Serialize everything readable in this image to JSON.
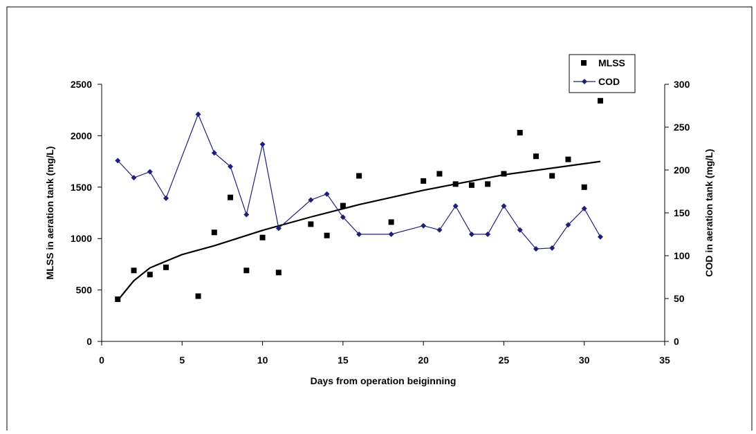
{
  "chart_data": {
    "type": "scatter",
    "title": "",
    "xlabel": "Days from operation beiginning",
    "ylabel": "MLSS  in aeration tank (mg/L)",
    "y2label": "COD in aeration tank (mg/L)",
    "xlim": [
      0,
      35
    ],
    "ylim": [
      0,
      2500
    ],
    "y2lim": [
      0,
      300
    ],
    "xticks": [
      0,
      5,
      10,
      15,
      20,
      25,
      30,
      35
    ],
    "yticks": [
      0,
      500,
      1000,
      1500,
      2000,
      2500
    ],
    "y2ticks": [
      0,
      50,
      100,
      150,
      200,
      250,
      300
    ],
    "grid": false,
    "legend_position": "top-right",
    "series": [
      {
        "name": "MLSS",
        "type": "scatter",
        "axis": "left",
        "color": "#000000",
        "marker": "square",
        "x": [
          1,
          2,
          3,
          4,
          6,
          7,
          8,
          9,
          10,
          11,
          13,
          14,
          15,
          16,
          18,
          20,
          21,
          22,
          23,
          24,
          25,
          26,
          27,
          28,
          29,
          30,
          31
        ],
        "values": [
          410,
          690,
          650,
          720,
          440,
          1060,
          1400,
          690,
          1010,
          670,
          1140,
          1030,
          1320,
          1610,
          1160,
          1560,
          1630,
          1530,
          1520,
          1530,
          1630,
          2030,
          1800,
          1610,
          1770,
          1500,
          2340
        ]
      },
      {
        "name": "COD",
        "type": "line",
        "axis": "right",
        "color": "#1f1f7a",
        "marker": "diamond",
        "x": [
          1,
          2,
          3,
          4,
          6,
          7,
          8,
          9,
          10,
          11,
          13,
          14,
          15,
          16,
          18,
          20,
          21,
          22,
          23,
          24,
          25,
          26,
          27,
          28,
          29,
          30,
          31
        ],
        "values": [
          211,
          191,
          198,
          167,
          265,
          220,
          204,
          148,
          230,
          132,
          165,
          172,
          145,
          125,
          125,
          135,
          130,
          158,
          125,
          125,
          158,
          130,
          108,
          109,
          136,
          155,
          122
        ]
      },
      {
        "type": "trendline",
        "axis": "left",
        "color": "#000000",
        "model": "log",
        "x": [
          1,
          2,
          3,
          5,
          7,
          10,
          13,
          16,
          20,
          25,
          31
        ],
        "values": [
          400,
          590,
          715,
          845,
          930,
          1080,
          1210,
          1330,
          1470,
          1620,
          1750
        ]
      }
    ]
  }
}
